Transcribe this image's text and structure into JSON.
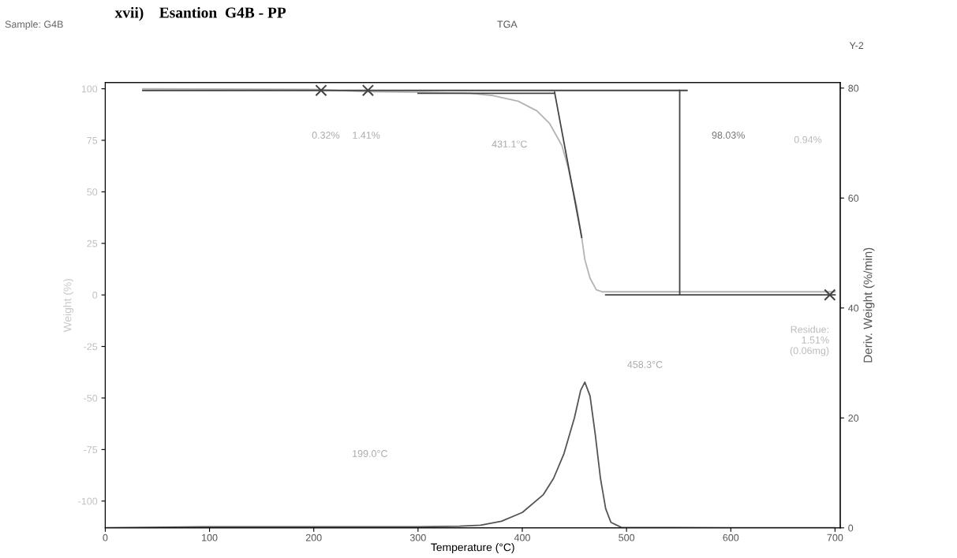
{
  "chart_data": {
    "type": "line",
    "title": "xvii)    Esantion  G4B - PP",
    "subtitle": "TGA",
    "xlabel": "Temperature (°C)",
    "ylabel": "Weight (%)",
    "y2label": "Deriv. Weight (%/min)",
    "series": [
      {
        "color": "#b4b4b4",
        "x": [
          36,
          100,
          200,
          250,
          300,
          350,
          372,
          396,
          414,
          426,
          438,
          444,
          452,
          457,
          460,
          465,
          471,
          477,
          550,
          700
        ],
        "values": [
          100,
          99.9,
          99.7,
          98.6,
          98.3,
          97.8,
          96.7,
          94,
          89.3,
          83.3,
          72.5,
          61.7,
          43.4,
          27.9,
          17.2,
          8.1,
          2.5,
          1.5,
          1.5,
          1.5
        ]
      },
      {
        "axis": "y2",
        "color": "#555555",
        "x": [
          0,
          100,
          200,
          300,
          340,
          360,
          380,
          400,
          420,
          430,
          440,
          450,
          456,
          460,
          465,
          470,
          475,
          480,
          485,
          495,
          600,
          700
        ],
        "values": [
          0,
          0.2,
          0.2,
          0.2,
          0.3,
          0.5,
          1.2,
          2.8,
          6,
          9,
          13.5,
          20,
          25,
          26.5,
          24,
          17,
          9,
          3.5,
          1,
          0.1,
          0,
          0
        ]
      },
      {
        "color": "#444444",
        "x": [
          36,
          558
        ],
        "values": [
          99.2,
          99.2
        ]
      },
      {
        "color": "#444444",
        "x": [
          300,
          431
        ],
        "values": [
          97.8,
          97.8
        ]
      },
      {
        "color": "#444444",
        "x": [
          431,
          457
        ],
        "values": [
          98.3,
          27.9
        ]
      },
      {
        "color": "#444444",
        "x": [
          480,
          700
        ],
        "values": [
          0,
          0
        ]
      },
      {
        "color": "#444444",
        "x": [
          551,
          551
        ],
        "values": [
          99.2,
          0
        ]
      },
      {
        "type": "scatter",
        "marker": "cross",
        "color": "#444444",
        "x": [
          207,
          252,
          695
        ],
        "values": [
          99.2,
          99.2,
          0
        ]
      }
    ],
    "xlim": [
      0,
      705
    ],
    "xticks": [
      0,
      100,
      200,
      300,
      400,
      500,
      600,
      700
    ],
    "ylim": [
      -113,
      103
    ],
    "yticks": [
      100,
      75,
      50,
      25,
      0,
      -25,
      -50,
      -75,
      -100
    ],
    "y2lim": [
      0,
      81
    ],
    "y2ticks": [
      0,
      20,
      40,
      60,
      80
    ],
    "annotations": [
      "Sample: G4B",
      "Y-2",
      "0.32%",
      "1.41%",
      "431.1°C",
      "98.03%",
      "0.94%",
      "Residue:\n1.51%\n(0.06mg)",
      "458.3°C",
      "199.0°C"
    ],
    "grid": false,
    "legend": false
  }
}
